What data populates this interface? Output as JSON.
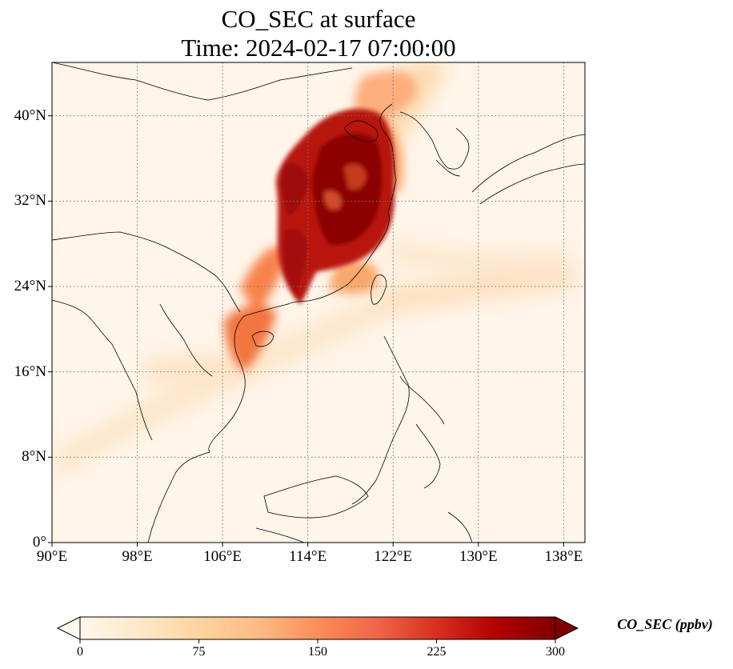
{
  "title": {
    "line1": "CO_SEC at surface",
    "line2": "Time: 2024-02-17 07:00:00"
  },
  "map": {
    "projection": "PlateCarree",
    "lon_range": [
      90,
      140
    ],
    "lat_range": [
      0,
      45
    ],
    "gridlines": "dotted",
    "x_ticks": [
      "90°E",
      "98°E",
      "106°E",
      "114°E",
      "122°E",
      "130°E",
      "138°E"
    ],
    "y_ticks": [
      "0°",
      "8°N",
      "16°N",
      "24°N",
      "32°N",
      "40°N"
    ],
    "x_tick_values": [
      90,
      98,
      106,
      114,
      122,
      130,
      138
    ],
    "y_tick_values": [
      0,
      8,
      16,
      24,
      32,
      40
    ],
    "field_colormap": "OrRd",
    "field_max_region": "Eastern China / North China Plain"
  },
  "colorbar": {
    "label": "CO_SEC (ppbv)",
    "ticks": [
      "0",
      "75",
      "150",
      "225",
      "300"
    ],
    "tick_values": [
      0,
      75,
      150,
      225,
      300
    ],
    "range": [
      0,
      300
    ],
    "extend": "both",
    "colors": [
      "#fff7ec",
      "#fee8c8",
      "#fdd49e",
      "#fdbb84",
      "#fc8d59",
      "#ef6548",
      "#d7301f",
      "#b30000",
      "#7f0000"
    ]
  }
}
